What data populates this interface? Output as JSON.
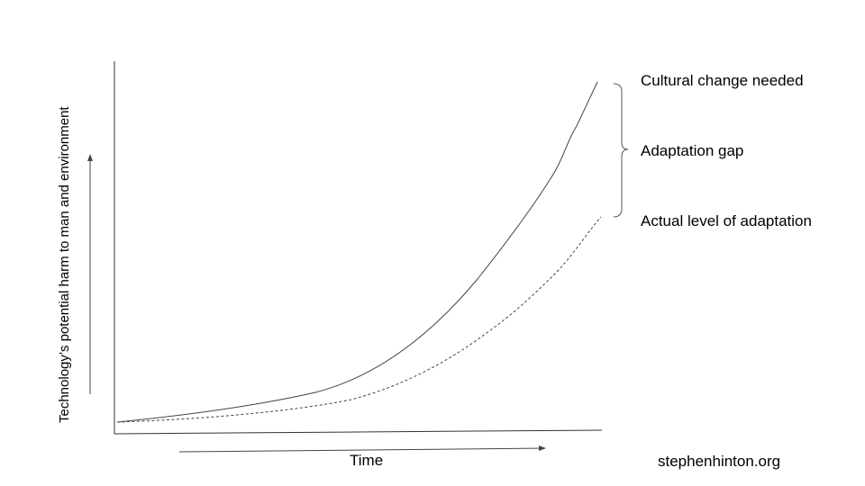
{
  "axes": {
    "xlabel": "Time",
    "ylabel": "Technology’s potential harm to man and environment"
  },
  "annotations": {
    "top": "Cultural change needed",
    "middle": "Adaptation gap",
    "bottom": "Actual level of adaptation"
  },
  "footer": {
    "site": "stephenhinton.org"
  },
  "colors": {
    "line": "#444444",
    "axis": "#333333",
    "text": "#000000"
  },
  "series": {
    "technology_harm": {
      "style": "solid"
    },
    "actual_adaptation": {
      "style": "dashed"
    }
  }
}
